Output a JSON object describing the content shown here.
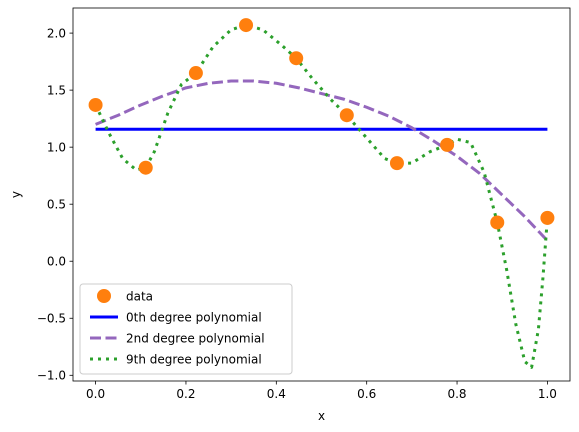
{
  "chart_data": {
    "type": "line",
    "title": "",
    "xlabel": "x",
    "ylabel": "y",
    "xlim": [
      -0.05,
      1.05
    ],
    "ylim": [
      -1.05,
      2.22
    ],
    "xticks": [
      0.0,
      0.2,
      0.4,
      0.6,
      0.8,
      1.0
    ],
    "xtick_labels": [
      "0.0",
      "0.2",
      "0.4",
      "0.6",
      "0.8",
      "1.0"
    ],
    "yticks": [
      -1.0,
      -0.5,
      0.0,
      0.5,
      1.0,
      1.5,
      2.0
    ],
    "ytick_labels": [
      "−1.0",
      "−0.5",
      "0.0",
      "0.5",
      "1.0",
      "1.5",
      "2.0"
    ],
    "grid": false,
    "legend_position": "lower-left",
    "series": [
      {
        "name": "data",
        "kind": "scatter",
        "color": "#ff7f0e",
        "x": [
          0.0,
          0.111,
          0.222,
          0.333,
          0.444,
          0.556,
          0.667,
          0.778,
          0.889,
          1.0
        ],
        "y": [
          1.37,
          0.82,
          1.65,
          2.07,
          1.78,
          1.28,
          0.86,
          1.02,
          0.34,
          0.38
        ]
      },
      {
        "name": "0th degree polynomial",
        "kind": "line",
        "style": "solid",
        "color": "#0000ff",
        "x": [
          0.0,
          1.0
        ],
        "y": [
          1.157,
          1.157
        ]
      },
      {
        "name": "2nd degree polynomial",
        "kind": "line",
        "style": "dashed",
        "color": "#9467bd",
        "x": [
          0.0,
          0.05,
          0.1,
          0.15,
          0.2,
          0.25,
          0.3,
          0.35,
          0.4,
          0.45,
          0.5,
          0.55,
          0.6,
          0.65,
          0.7,
          0.75,
          0.8,
          0.85,
          0.9,
          0.95,
          1.0
        ],
        "y": [
          1.2,
          1.28,
          1.37,
          1.45,
          1.52,
          1.56,
          1.58,
          1.58,
          1.56,
          1.52,
          1.47,
          1.42,
          1.35,
          1.27,
          1.17,
          1.05,
          0.92,
          0.77,
          0.58,
          0.39,
          0.18
        ]
      },
      {
        "name": "9th degree polynomial",
        "kind": "line",
        "style": "dotted",
        "color": "#2ca02c",
        "x": [
          0.0,
          0.03,
          0.06,
          0.09,
          0.111,
          0.13,
          0.16,
          0.19,
          0.222,
          0.26,
          0.3,
          0.333,
          0.37,
          0.41,
          0.444,
          0.48,
          0.52,
          0.556,
          0.6,
          0.64,
          0.667,
          0.7,
          0.74,
          0.778,
          0.8,
          0.83,
          0.86,
          0.889,
          0.91,
          0.93,
          0.95,
          0.965,
          0.98,
          0.99,
          1.0
        ],
        "y": [
          1.37,
          1.12,
          0.9,
          0.8,
          0.82,
          0.96,
          1.3,
          1.55,
          1.65,
          1.88,
          2.03,
          2.07,
          2.03,
          1.9,
          1.78,
          1.6,
          1.42,
          1.28,
          1.08,
          0.9,
          0.86,
          0.86,
          0.96,
          1.02,
          1.07,
          1.04,
          0.78,
          0.34,
          -0.08,
          -0.55,
          -0.88,
          -0.93,
          -0.6,
          -0.15,
          0.38
        ]
      }
    ]
  }
}
